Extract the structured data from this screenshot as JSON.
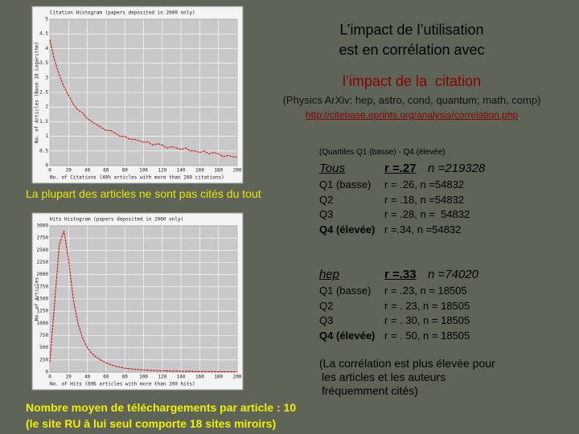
{
  "title": [
    "L’impact de l’utilisation",
    "est en corrélation avec",
    "l’impact de la  citation"
  ],
  "source": "(Physics ArXiv: hep, astro, cond, quantum; math, comp)",
  "url": "http://citebase.eprints.org/analysis/correlation.php",
  "quartile_note": "(Quartiles Q1 (basse) - Q4 (élevée)",
  "groups": [
    {
      "name": "Tous",
      "r": "r =.27",
      "n": "n =219328",
      "rows": [
        [
          "Q1 (basse)",
          "r = .26, n =54832"
        ],
        [
          "Q2",
          "r = .18, n =54832"
        ],
        [
          "Q3",
          "r = .28, n =  54832"
        ],
        [
          "Q4 (élevée)",
          "r =.34, n =54832"
        ]
      ]
    },
    {
      "name": "hep",
      "r": "r =.33",
      "n": "n =74020",
      "rows": [
        [
          "Q1 (basse)",
          "r = .23, n = 18505"
        ],
        [
          "Q2",
          "r = . 23, n = 18505"
        ],
        [
          "Q3",
          "r = . 30, n = 18505"
        ],
        [
          "Q4 (élevée)",
          "r = . 50, n = 18505"
        ]
      ]
    }
  ],
  "note": [
    "(La corrélation est plus élevée pour",
    "les articles et les auteurs",
    "fréquemment cités)"
  ],
  "left_note": "La plupart des articles ne sont pas cités du tout",
  "footer": [
    "Nombre moyen de téléchargements par article : 10",
    "(le site RU à lui seul comporte 18 sites miroirs)"
  ],
  "chart_data": [
    {
      "type": "line",
      "title": "Citation Histogram (papers deposited in 2000 only)",
      "xlabel": "No. of Citations (40% articles with more than 200 citations)",
      "ylabel": "No. of Articles (Base 10 Logarithm)",
      "color": "#cc0000",
      "grid": true,
      "xlim": [
        0,
        200
      ],
      "xticks": [
        0,
        20,
        40,
        60,
        80,
        100,
        120,
        140,
        160,
        180,
        200
      ],
      "ylim": [
        0,
        5
      ],
      "yticks": [
        0,
        0.5,
        1,
        1.5,
        2,
        2.5,
        3,
        3.5,
        4,
        4.5,
        5
      ],
      "x": [
        0,
        5,
        10,
        15,
        20,
        25,
        30,
        35,
        40,
        45,
        50,
        55,
        60,
        65,
        70,
        75,
        80,
        85,
        90,
        95,
        100,
        105,
        110,
        115,
        120,
        125,
        130,
        135,
        140,
        145,
        150,
        155,
        160,
        165,
        170,
        175,
        180,
        185,
        190,
        195,
        200
      ],
      "values": [
        4.3,
        3.6,
        3.1,
        2.7,
        2.4,
        2.1,
        1.9,
        1.8,
        1.6,
        1.5,
        1.4,
        1.3,
        1.2,
        1.2,
        1.1,
        1.0,
        1.0,
        0.9,
        0.9,
        0.85,
        0.8,
        0.8,
        0.7,
        0.75,
        0.7,
        0.6,
        0.65,
        0.6,
        0.55,
        0.6,
        0.5,
        0.5,
        0.45,
        0.5,
        0.4,
        0.45,
        0.4,
        0.3,
        0.35,
        0.3,
        0.3
      ]
    },
    {
      "type": "line",
      "title": "Hits Histogram (papers deposited in 2000 only)",
      "xlabel": "No. of Hits (896 articles with more than 200 hits)",
      "ylabel": "No. of Articles",
      "color": "#cc0000",
      "grid": true,
      "xlim": [
        0,
        200
      ],
      "xticks": [
        0,
        20,
        40,
        60,
        80,
        100,
        120,
        140,
        160,
        180,
        200
      ],
      "ylim": [
        0,
        3000
      ],
      "yticks": [
        0,
        250,
        500,
        750,
        1000,
        1250,
        1500,
        1750,
        2000,
        2250,
        2500,
        2750,
        3000
      ],
      "x": [
        0,
        5,
        10,
        15,
        20,
        25,
        30,
        35,
        40,
        45,
        50,
        55,
        60,
        65,
        70,
        75,
        80,
        85,
        90,
        95,
        100,
        105,
        110,
        115,
        120,
        125,
        130,
        135,
        140,
        145,
        150,
        155,
        160,
        165,
        170,
        175,
        180,
        185,
        190,
        195,
        200
      ],
      "values": [
        200,
        1400,
        2600,
        2900,
        2300,
        1500,
        1000,
        700,
        500,
        380,
        300,
        240,
        190,
        150,
        120,
        100,
        80,
        70,
        60,
        50,
        45,
        40,
        35,
        30,
        28,
        25,
        22,
        20,
        18,
        16,
        15,
        13,
        12,
        11,
        10,
        9,
        8,
        8,
        7,
        6,
        5
      ]
    }
  ]
}
